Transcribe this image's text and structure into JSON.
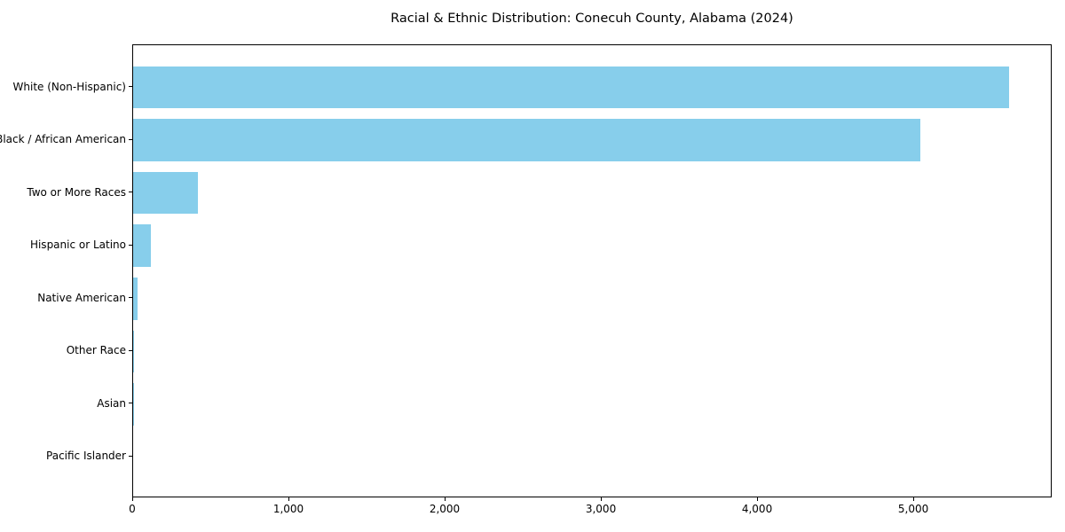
{
  "chart_data": {
    "type": "bar",
    "orientation": "horizontal",
    "title": "Racial & Ethnic Distribution: Conecuh County, Alabama (2024)",
    "categories": [
      "White (Non-Hispanic)",
      "Black / African American",
      "Two or More Races",
      "Hispanic or Latino",
      "Native American",
      "Other Race",
      "Asian",
      "Pacific Islander"
    ],
    "values": [
      5610,
      5040,
      415,
      115,
      27,
      7,
      4,
      0
    ],
    "xlabel": "",
    "ylabel": "",
    "xlim": [
      0,
      5886
    ],
    "xticks": [
      0,
      1000,
      2000,
      3000,
      4000,
      5000
    ],
    "xtick_labels": [
      "0",
      "1,000",
      "2,000",
      "3,000",
      "4,000",
      "5,000"
    ],
    "bar_color": "#87CEEB",
    "axis_color": "#000000",
    "background": "#ffffff",
    "grid": false,
    "legend": null
  }
}
